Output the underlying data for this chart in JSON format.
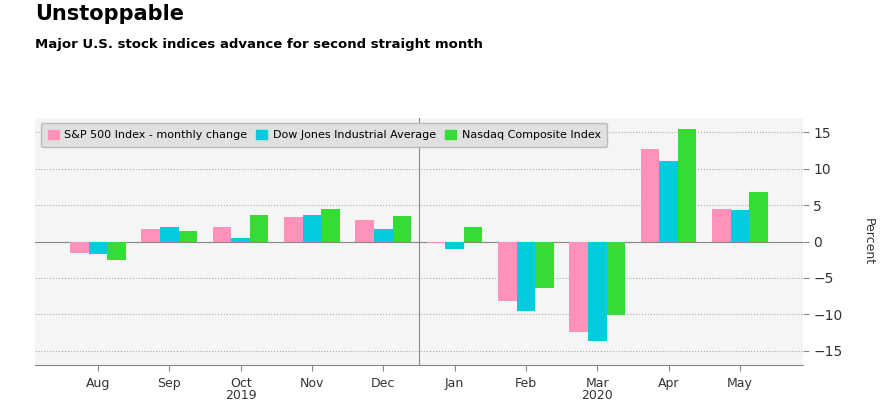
{
  "title": "Unstoppable",
  "subtitle": "Major U.S. stock indices advance for second straight month",
  "months": [
    "Aug",
    "Sep",
    "Oct",
    "Nov",
    "Dec",
    "Jan",
    "Feb",
    "Mar",
    "Apr",
    "May"
  ],
  "sp500": [
    -1.6,
    1.7,
    2.0,
    3.4,
    2.9,
    -0.2,
    -8.2,
    -12.4,
    12.7,
    4.5
  ],
  "dji": [
    -1.7,
    2.0,
    0.5,
    3.7,
    1.7,
    -1.0,
    -9.6,
    -13.7,
    11.1,
    4.3
  ],
  "nasdaq": [
    -2.6,
    1.4,
    3.7,
    4.5,
    3.5,
    2.0,
    -6.4,
    -10.1,
    15.4,
    6.8
  ],
  "color_sp500": "#FF91BB",
  "color_dji": "#00CCDD",
  "color_nasdaq": "#33DD33",
  "ylim": [
    -17,
    17
  ],
  "yticks": [
    -15,
    -10,
    -5,
    0,
    5,
    10,
    15
  ],
  "ylabel": "Percent",
  "legend_labels": [
    "S&P 500 Index - monthly change",
    "Dow Jones Industrial Average",
    "Nasdaq Composite Index"
  ],
  "bg_color": "#ffffff",
  "plot_bg_color": "#f5f5f5",
  "legend_bg": "#e0e0e0",
  "bar_width": 0.26,
  "year_label_oct_idx": 2,
  "year_label_mar_idx": 7
}
